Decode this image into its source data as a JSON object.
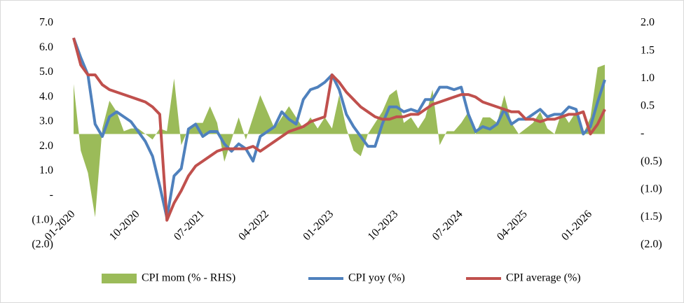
{
  "chart_data": {
    "type": "line",
    "categories": [
      "01-2020",
      null,
      null,
      null,
      null,
      null,
      null,
      null,
      null,
      "10-2020",
      null,
      null,
      null,
      null,
      null,
      null,
      null,
      null,
      "07-2021",
      null,
      null,
      null,
      null,
      null,
      null,
      null,
      null,
      "04-2022",
      null,
      null,
      null,
      null,
      null,
      null,
      null,
      null,
      "01-2023",
      null,
      null,
      null,
      null,
      null,
      null,
      null,
      null,
      "10-2023",
      null,
      null,
      null,
      null,
      null,
      null,
      null,
      null,
      "07-2024",
      null,
      null,
      null,
      null,
      null,
      null,
      null,
      null,
      "04-2025",
      null,
      null,
      null,
      null,
      null,
      null,
      null,
      null,
      "01-2026",
      null,
      null
    ],
    "series": [
      {
        "name": "CPI mom (% - RHS)",
        "color": "#9bbb59",
        "axis": "y2",
        "kind": "area",
        "values": [
          0.9,
          -0.3,
          -0.7,
          -1.5,
          0.1,
          0.6,
          0.4,
          0.05,
          0.1,
          0.1,
          0.0,
          -0.1,
          0.1,
          0.05,
          1.0,
          -0.2,
          0.1,
          0.2,
          0.2,
          0.5,
          0.2,
          -0.5,
          -0.1,
          0.3,
          -0.1,
          0.3,
          0.7,
          0.4,
          0.1,
          0.3,
          0.5,
          0.3,
          0.1,
          0.3,
          0.1,
          0.3,
          0.1,
          0.7,
          0.1,
          -0.3,
          -0.4,
          0.0,
          0.2,
          0.4,
          0.7,
          0.8,
          0.2,
          0.3,
          0.1,
          0.3,
          0.8,
          -0.2,
          0.05,
          0.05,
          0.2,
          0.4,
          0.0,
          0.3,
          0.3,
          0.2,
          0.7,
          0.2,
          0.0,
          0.1,
          0.2,
          0.4,
          0.1,
          0.0,
          0.4,
          0.2,
          0.4,
          0.0,
          0.3,
          1.2,
          1.25
        ]
      },
      {
        "name": "CPI yoy (%)",
        "color": "#4f81bd",
        "values": [
          6.4,
          5.6,
          4.9,
          2.9,
          2.4,
          3.2,
          3.4,
          3.2,
          3.0,
          2.6,
          2.2,
          1.6,
          0.4,
          -0.9,
          0.8,
          1.1,
          2.7,
          2.9,
          2.4,
          2.6,
          2.6,
          2.1,
          1.8,
          2.1,
          1.9,
          1.4,
          2.4,
          2.6,
          2.8,
          3.4,
          3.1,
          2.9,
          3.9,
          4.3,
          4.4,
          4.6,
          4.9,
          4.3,
          3.3,
          2.8,
          2.4,
          2.0,
          2.0,
          2.9,
          3.6,
          3.6,
          3.4,
          3.5,
          3.4,
          3.9,
          3.9,
          4.4,
          4.4,
          4.3,
          4.4,
          3.3,
          2.6,
          2.8,
          2.7,
          2.9,
          3.5,
          2.9,
          3.1,
          3.1,
          3.3,
          3.5,
          3.2,
          3.3,
          3.3,
          3.6,
          3.5,
          2.5,
          2.8,
          3.8,
          4.7
        ]
      },
      {
        "name": "CPI average (%)",
        "color": "#c0504d",
        "values": [
          6.4,
          5.3,
          4.9,
          4.9,
          4.5,
          4.3,
          4.2,
          4.1,
          4.0,
          3.9,
          3.8,
          3.6,
          3.3,
          -1.0,
          -0.3,
          0.2,
          0.8,
          1.2,
          1.4,
          1.6,
          1.8,
          1.9,
          1.9,
          1.9,
          1.9,
          2.0,
          1.8,
          2.0,
          2.2,
          2.4,
          2.6,
          2.7,
          2.8,
          3.0,
          3.1,
          3.2,
          4.9,
          4.6,
          4.2,
          3.9,
          3.6,
          3.4,
          3.2,
          3.1,
          3.1,
          3.2,
          3.2,
          3.3,
          3.3,
          3.5,
          3.7,
          3.8,
          3.9,
          4.0,
          4.1,
          4.1,
          4.0,
          3.8,
          3.7,
          3.6,
          3.5,
          3.4,
          3.4,
          3.1,
          3.1,
          3.0,
          3.1,
          3.1,
          3.2,
          3.3,
          3.3,
          3.4,
          2.5,
          2.9,
          3.5
        ]
      }
    ],
    "ylim": [
      -2,
      7
    ],
    "yticks": [
      {
        "value": -2,
        "label": "(2.0)"
      },
      {
        "value": -1,
        "label": "(1.0)"
      },
      {
        "value": 0,
        "label": "-"
      },
      {
        "value": 1,
        "label": "1.0"
      },
      {
        "value": 2,
        "label": "2.0"
      },
      {
        "value": 3,
        "label": "3.0"
      },
      {
        "value": 4,
        "label": "4.0"
      },
      {
        "value": 5,
        "label": "5.0"
      },
      {
        "value": 6,
        "label": "6.0"
      },
      {
        "value": 7,
        "label": "7.0"
      }
    ],
    "y2lim": [
      -2,
      2
    ],
    "y2ticks": [
      {
        "value": -2,
        "label": "(2.0)"
      },
      {
        "value": -1.5,
        "label": "(1.5)"
      },
      {
        "value": -1,
        "label": "(1.0)"
      },
      {
        "value": -0.5,
        "label": "(0.5)"
      },
      {
        "value": 0,
        "label": "-"
      },
      {
        "value": 0.5,
        "label": "0.5"
      },
      {
        "value": 1,
        "label": "1.0"
      },
      {
        "value": 1.5,
        "label": "1.5"
      },
      {
        "value": 2,
        "label": "2.0"
      }
    ],
    "grid": false,
    "legend": "bottom"
  }
}
